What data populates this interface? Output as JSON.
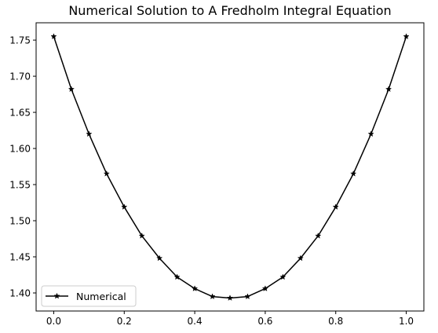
{
  "chart_data": {
    "type": "line",
    "title": "Numerical Solution to A Fredholm Integral Equation",
    "xlabel": "",
    "ylabel": "",
    "xlim": [
      -0.05,
      1.05
    ],
    "ylim": [
      1.375,
      1.774
    ],
    "xticks": [
      "0.0",
      "0.2",
      "0.4",
      "0.6",
      "0.8",
      "1.0"
    ],
    "yticks": [
      "1.40",
      "1.45",
      "1.50",
      "1.55",
      "1.60",
      "1.65",
      "1.70",
      "1.75"
    ],
    "grid": false,
    "legend_position": "lower-left",
    "series": [
      {
        "name": "Numerical",
        "color": "#000000",
        "marker": "star",
        "x": [
          0.0,
          0.05,
          0.1,
          0.15,
          0.2,
          0.25,
          0.3,
          0.35,
          0.4,
          0.45,
          0.5,
          0.55,
          0.6,
          0.65,
          0.7,
          0.75,
          0.8,
          0.85,
          0.9,
          0.95,
          1.0
        ],
        "y": [
          1.755,
          1.682,
          1.62,
          1.565,
          1.519,
          1.479,
          1.448,
          1.422,
          1.406,
          1.395,
          1.393,
          1.395,
          1.406,
          1.422,
          1.448,
          1.479,
          1.519,
          1.565,
          1.62,
          1.682,
          1.755
        ]
      }
    ]
  }
}
